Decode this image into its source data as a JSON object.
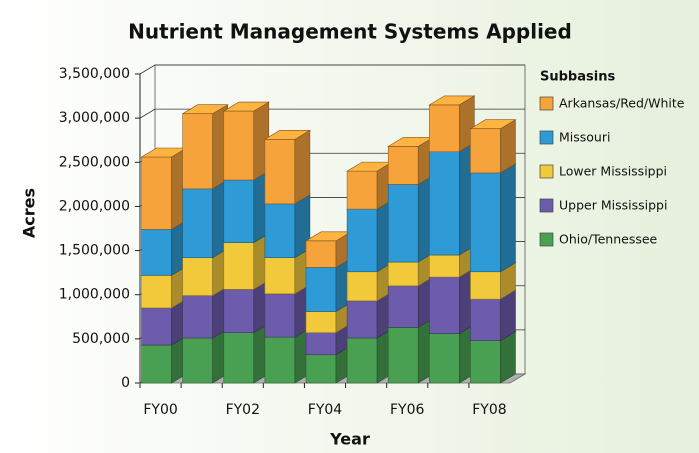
{
  "chart_data": {
    "type": "bar3d-stacked",
    "title": "Nutrient Management Systems Applied",
    "x_label": "Year",
    "y_label": "Acres",
    "legend_title": "Subbasins",
    "categories": [
      "FY00",
      null,
      "FY02",
      null,
      "FY04",
      null,
      "FY06",
      null,
      "FY08"
    ],
    "series": [
      {
        "name": "Ohio/Tennessee",
        "color": "#4aa052",
        "values": [
          430000,
          510000,
          570000,
          520000,
          320000,
          510000,
          630000,
          560000,
          480000
        ]
      },
      {
        "name": "Upper Mississippi",
        "color": "#6c5cab",
        "values": [
          420000,
          480000,
          490000,
          490000,
          250000,
          420000,
          470000,
          640000,
          470000
        ]
      },
      {
        "name": "Lower Mississippi",
        "color": "#f3c93c",
        "values": [
          370000,
          430000,
          530000,
          410000,
          240000,
          330000,
          270000,
          250000,
          310000
        ]
      },
      {
        "name": "Missouri",
        "color": "#2f9bd6",
        "values": [
          520000,
          780000,
          710000,
          610000,
          500000,
          710000,
          880000,
          1170000,
          1120000
        ]
      },
      {
        "name": "Arkansas/Red/White",
        "color": "#f7a33b",
        "values": [
          820000,
          850000,
          780000,
          730000,
          300000,
          430000,
          430000,
          530000,
          500000
        ]
      }
    ],
    "ylim": [
      0,
      3500000
    ],
    "yticks": [
      0,
      {
        "value": 500000,
        "label": "500,000"
      },
      {
        "value": 1000000,
        "label": "1,000,000"
      },
      {
        "value": 1500000,
        "label": "1,500,000"
      },
      {
        "value": 2000000,
        "label": "2,000,000"
      },
      {
        "value": 2500000,
        "label": "2,500,000"
      },
      {
        "value": 3000000,
        "label": "3,000,000"
      },
      {
        "value": 3500000,
        "label": "3,500,000"
      }
    ],
    "grid": true
  }
}
